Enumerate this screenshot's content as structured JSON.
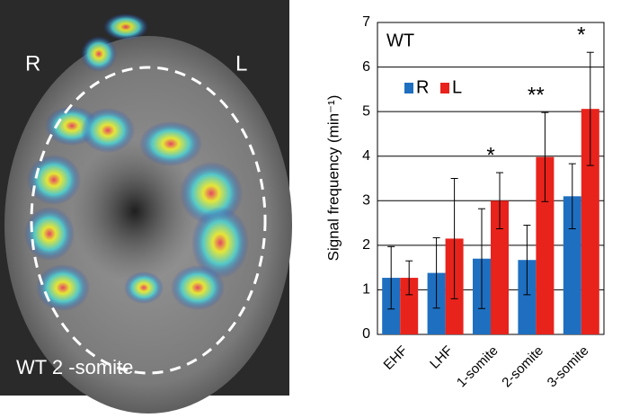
{
  "image_panel": {
    "left_label": "R",
    "right_label": "L",
    "caption": "WT 2 -somite"
  },
  "chart_data": {
    "type": "bar",
    "panel_label": "WT",
    "y_label": "Signal frequency (min⁻¹)",
    "categories": [
      "EHF",
      "LHF",
      "1-somite",
      "2-somite",
      "3-somite"
    ],
    "series": [
      {
        "name": "R",
        "color": "#1f6fc0",
        "values": [
          1.27,
          1.38,
          1.7,
          1.67,
          3.1
        ],
        "errors": [
          0.7,
          0.79,
          1.12,
          0.78,
          0.73
        ]
      },
      {
        "name": "L",
        "color": "#e8231c",
        "values": [
          1.27,
          2.15,
          3.0,
          3.98,
          5.06
        ],
        "errors": [
          0.38,
          1.35,
          0.63,
          1.0,
          1.27
        ]
      }
    ],
    "significance": [
      null,
      null,
      "*",
      "**",
      "*"
    ],
    "ylim": [
      0,
      7
    ],
    "yticks": [
      0,
      1,
      2,
      3,
      4,
      5,
      6,
      7
    ],
    "grid": true,
    "legend": "top-left"
  }
}
